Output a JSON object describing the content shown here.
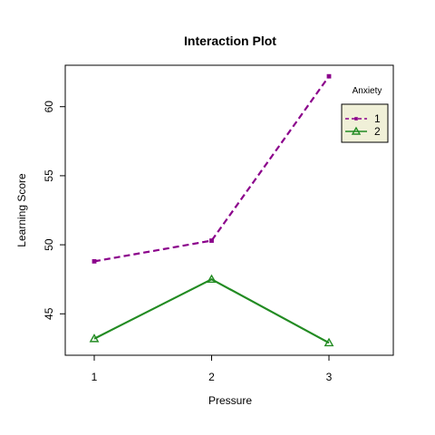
{
  "chart_data": {
    "type": "line",
    "title": "Interaction Plot",
    "xlabel": "Pressure",
    "ylabel": "Learning Score",
    "categories": [
      "1",
      "2",
      "3"
    ],
    "ylim": [
      42.0,
      63.0
    ],
    "yticks": [
      45,
      50,
      55,
      60
    ],
    "grid": false,
    "legend": {
      "title": "Anxiety",
      "placement": "top-right"
    },
    "series": [
      {
        "name": "1",
        "values": [
          48.8,
          50.3,
          62.2
        ],
        "color": "#8B008B",
        "line": "dashed",
        "marker": "point"
      },
      {
        "name": "2",
        "values": [
          43.2,
          47.5,
          42.9
        ],
        "color": "#228B22",
        "line": "solid",
        "marker": "triangle"
      }
    ]
  }
}
